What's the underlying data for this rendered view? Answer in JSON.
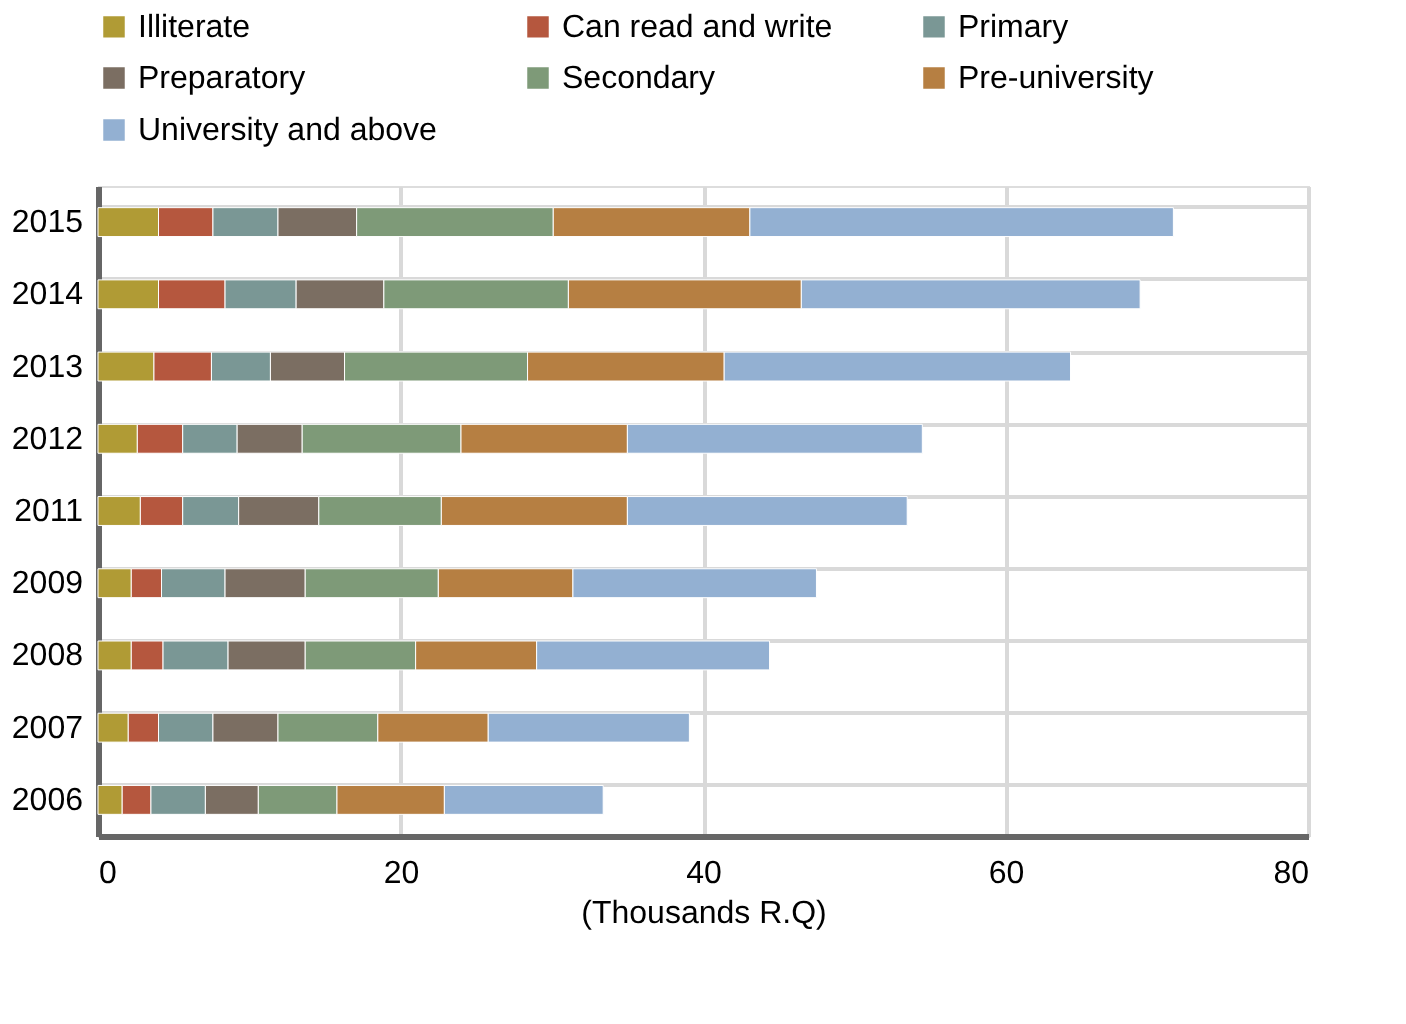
{
  "chart_data": {
    "type": "bar",
    "orientation": "horizontal",
    "stacked": true,
    "xlabel": "(Thousands R.Q)",
    "categories": [
      "2015",
      "2014",
      "2013",
      "2012",
      "2011",
      "2009",
      "2008",
      "2007",
      "2006"
    ],
    "series": [
      {
        "name": "Illiterate",
        "color": "#b09b35",
        "values": [
          4.0,
          4.0,
          3.7,
          2.6,
          2.8,
          2.2,
          2.2,
          2.0,
          1.6
        ]
      },
      {
        "name": "Can read and write",
        "color": "#b5573e",
        "values": [
          3.6,
          4.4,
          3.8,
          3.0,
          2.8,
          2.0,
          2.1,
          2.0,
          1.9
        ]
      },
      {
        "name": "Primary",
        "color": "#7a9795",
        "values": [
          4.3,
          4.7,
          3.9,
          3.6,
          3.7,
          4.2,
          4.3,
          3.6,
          3.6
        ]
      },
      {
        "name": "Preparatory",
        "color": "#7b6e62",
        "values": [
          5.2,
          5.8,
          4.9,
          4.3,
          5.3,
          5.3,
          5.1,
          4.3,
          3.5
        ]
      },
      {
        "name": "Secondary",
        "color": "#7e9a78",
        "values": [
          13.0,
          12.2,
          12.1,
          10.5,
          8.1,
          8.8,
          7.3,
          6.6,
          5.2
        ]
      },
      {
        "name": "Pre-university",
        "color": "#b67f42",
        "values": [
          13.0,
          15.4,
          13.0,
          11.0,
          12.3,
          8.9,
          8.0,
          7.3,
          7.1
        ]
      },
      {
        "name": "University and above",
        "color": "#93b0d2",
        "values": [
          28.0,
          22.4,
          22.9,
          19.5,
          18.5,
          16.1,
          15.4,
          13.3,
          10.5
        ]
      }
    ],
    "xlim": [
      0,
      80
    ],
    "xticks": [
      0,
      20,
      40,
      60,
      80
    ],
    "grid": true,
    "legend": "top"
  }
}
